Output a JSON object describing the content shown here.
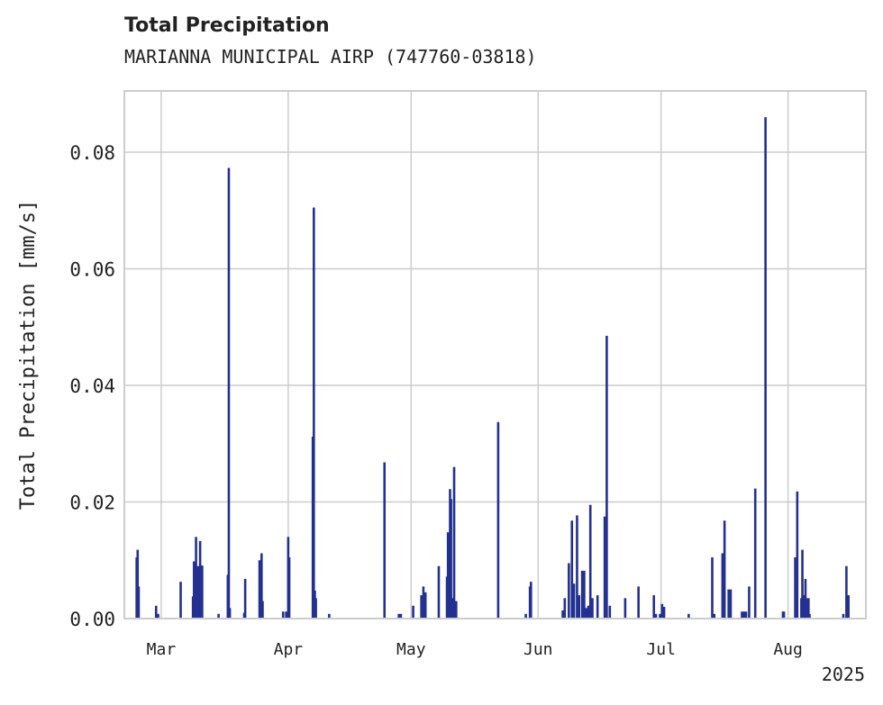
{
  "chart_data": {
    "type": "bar",
    "title": "Total Precipitation",
    "subtitle": "MARIANNA MUNICIPAL AIRP (747760-03818)",
    "ylabel": "Total Precipitation [mm/s]",
    "xlabel": "",
    "x_is_date": true,
    "year_label": "2025",
    "xlim": [
      "2025-02-20",
      "2025-08-20"
    ],
    "ylim": [
      0,
      0.0905
    ],
    "y_ticks": [
      0,
      0.02,
      0.04,
      0.06,
      0.08
    ],
    "y_tick_labels": [
      "0.00",
      "0.02",
      "0.04",
      "0.06",
      "0.08"
    ],
    "x_ticks": [
      "2025-03-01",
      "2025-04-01",
      "2025-05-01",
      "2025-06-01",
      "2025-07-01",
      "2025-08-01"
    ],
    "x_tick_labels": [
      "Mar",
      "Apr",
      "May",
      "Jun",
      "Jul",
      "Aug"
    ],
    "grid": true,
    "bar_color": "#233090",
    "x": [
      "2025-02-23T00:00",
      "2025-02-23T06:00",
      "2025-02-23T12:00",
      "2025-02-27T18:00",
      "2025-02-28T06:00",
      "2025-03-05T18:00",
      "2025-03-08T18:00",
      "2025-03-09T00:00",
      "2025-03-09T12:00",
      "2025-03-10T00:00",
      "2025-03-10T12:00",
      "2025-03-11T00:00",
      "2025-03-15T00:00",
      "2025-03-17T06:00",
      "2025-03-17T12:00",
      "2025-03-17T18:00",
      "2025-03-21T06:00",
      "2025-03-21T12:00",
      "2025-03-25T00:00",
      "2025-03-25T12:00",
      "2025-03-25T18:00",
      "2025-03-30T18:00",
      "2025-03-31T12:00",
      "2025-04-01T00:00",
      "2025-04-01T06:00",
      "2025-04-07T00:00",
      "2025-04-07T06:00",
      "2025-04-07T12:00",
      "2025-04-07T18:00",
      "2025-04-11T00:00",
      "2025-04-24T12:00",
      "2025-04-28T00:00",
      "2025-04-28T12:00",
      "2025-05-01T12:00",
      "2025-05-03T12:00",
      "2025-05-04T00:00",
      "2025-05-04T12:00",
      "2025-05-07T18:00",
      "2025-05-09T18:00",
      "2025-05-10T00:00",
      "2025-05-10T06:00",
      "2025-05-10T12:00",
      "2025-05-10T18:00",
      "2025-05-11T00:00",
      "2025-05-11T12:00",
      "2025-05-12T00:00",
      "2025-05-22T06:00",
      "2025-05-29T00:00",
      "2025-05-30T00:00",
      "2025-05-30T06:00",
      "2025-06-07T00:00",
      "2025-06-07T12:00",
      "2025-06-08T12:00",
      "2025-06-09T06:00",
      "2025-06-09T18:00",
      "2025-06-10T12:00",
      "2025-06-11T00:00",
      "2025-06-11T18:00",
      "2025-06-12T06:00",
      "2025-06-12T18:00",
      "2025-06-13T06:00",
      "2025-06-13T18:00",
      "2025-06-14T06:00",
      "2025-06-15T12:00",
      "2025-06-17T06:00",
      "2025-06-17T18:00",
      "2025-06-18T12:00",
      "2025-06-22T06:00",
      "2025-06-25T12:00",
      "2025-06-29T06:00",
      "2025-06-29T18:00",
      "2025-06-30T18:00",
      "2025-07-01T06:00",
      "2025-07-01T18:00",
      "2025-07-07T18:00",
      "2025-07-13T12:00",
      "2025-07-14T00:00",
      "2025-07-16T00:00",
      "2025-07-16T12:00",
      "2025-07-17T12:00",
      "2025-07-18T00:00",
      "2025-07-20T18:00",
      "2025-07-21T06:00",
      "2025-07-21T18:00",
      "2025-07-22T12:00",
      "2025-07-24T00:00",
      "2025-07-26T12:00",
      "2025-07-30T18:00",
      "2025-07-31T00:00",
      "2025-08-02T18:00",
      "2025-08-03T06:00",
      "2025-08-04T06:00",
      "2025-08-04T12:00",
      "2025-08-04T18:00",
      "2025-08-05T06:00",
      "2025-08-05T12:00",
      "2025-08-06T00:00",
      "2025-08-06T06:00",
      "2025-08-14T12:00",
      "2025-08-15T06:00",
      "2025-08-15T18:00"
    ],
    "values": [
      0.0105,
      0.0118,
      0.0055,
      0.0022,
      0.0008,
      0.0063,
      0.0038,
      0.0098,
      0.014,
      0.009,
      0.0133,
      0.0091,
      0.0008,
      0.0075,
      0.0773,
      0.0018,
      0.001,
      0.0068,
      0.01,
      0.0112,
      0.003,
      0.0012,
      0.0012,
      0.014,
      0.0105,
      0.0312,
      0.0705,
      0.0048,
      0.0035,
      0.0008,
      0.0268,
      0.0008,
      0.0008,
      0.0022,
      0.004,
      0.0055,
      0.0045,
      0.009,
      0.0072,
      0.0148,
      0.0078,
      0.0222,
      0.0205,
      0.0035,
      0.026,
      0.003,
      0.0337,
      0.0008,
      0.0055,
      0.0063,
      0.0014,
      0.0035,
      0.0095,
      0.0168,
      0.006,
      0.0177,
      0.004,
      0.0082,
      0.0082,
      0.0018,
      0.0022,
      0.0195,
      0.0035,
      0.004,
      0.0175,
      0.0485,
      0.0022,
      0.0035,
      0.0055,
      0.004,
      0.0008,
      0.0008,
      0.0025,
      0.002,
      0.0008,
      0.0105,
      0.0008,
      0.0112,
      0.0168,
      0.005,
      0.005,
      0.0012,
      0.0012,
      0.0012,
      0.0055,
      0.0223,
      0.086,
      0.0012,
      0.0012,
      0.0105,
      0.0218,
      0.0035,
      0.0118,
      0.004,
      0.0068,
      0.0035,
      0.0035,
      0.0008,
      0.0008,
      0.009,
      0.004
    ]
  }
}
